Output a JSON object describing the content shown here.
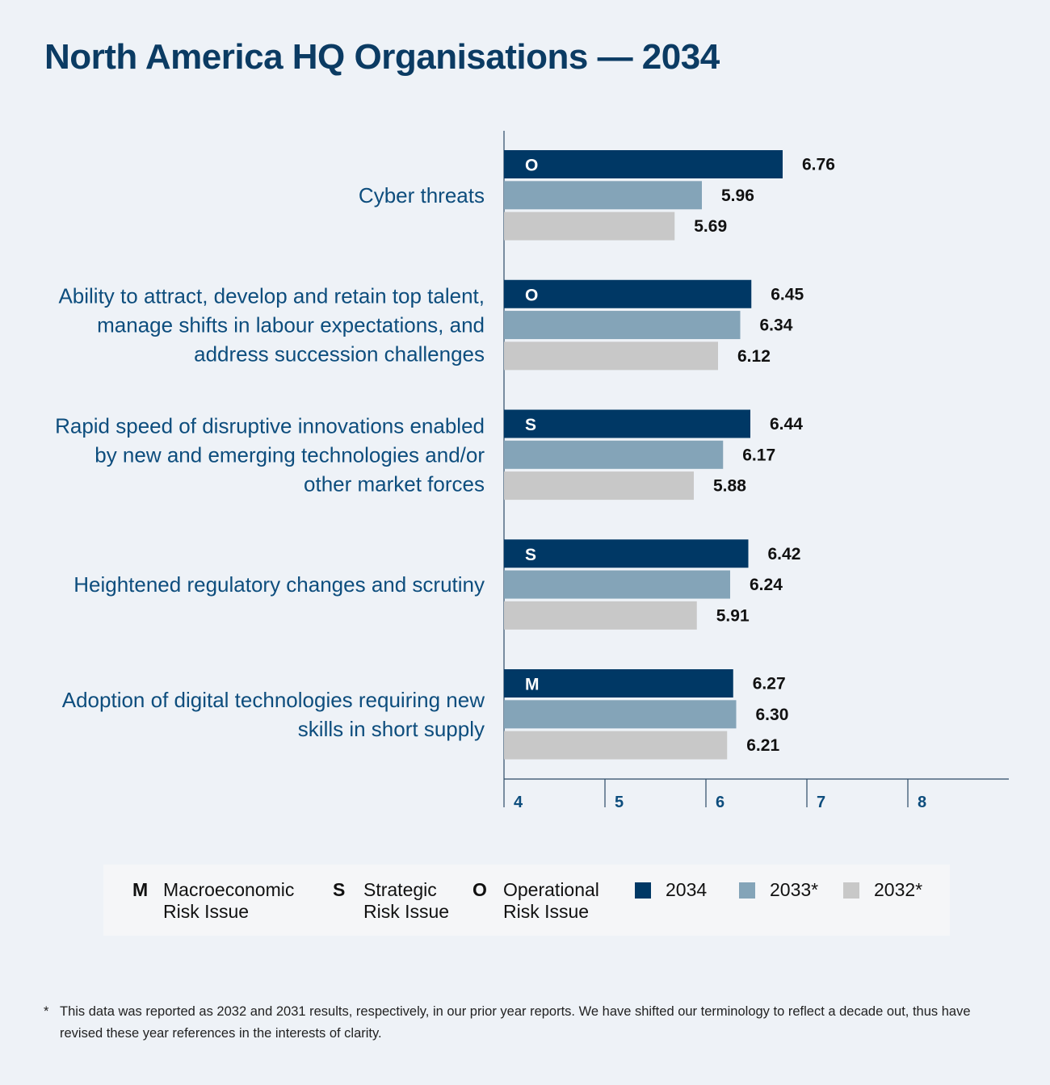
{
  "title": "North America HQ Organisations — 2034",
  "chart_data": {
    "type": "bar",
    "orientation": "horizontal",
    "categories": [
      [
        "Cyber threats"
      ],
      [
        "Ability to attract, develop and retain top talent,",
        "manage shifts in labour expectations, and",
        "address succession challenges"
      ],
      [
        "Rapid speed of disruptive innovations enabled",
        "by new and emerging technologies and/or",
        "other market forces"
      ],
      [
        "Heightened regulatory changes and scrutiny"
      ],
      [
        "Adoption of digital technologies requiring new",
        "skills in short supply"
      ]
    ],
    "risk_type": [
      "O",
      "O",
      "S",
      "S",
      "M"
    ],
    "series": [
      {
        "name": "2034",
        "color": "#003865",
        "values": [
          6.76,
          6.45,
          6.44,
          6.42,
          6.27
        ]
      },
      {
        "name": "2033*",
        "color": "#84a4b8",
        "values": [
          5.96,
          6.34,
          6.17,
          6.24,
          6.3
        ]
      },
      {
        "name": "2032*",
        "color": "#c8c8c8",
        "values": [
          5.69,
          6.12,
          5.88,
          5.91,
          6.21
        ]
      }
    ],
    "xlim": [
      4,
      9
    ],
    "xticks": [
      "4",
      "5",
      "6",
      "7",
      "8"
    ]
  },
  "legend": {
    "types": [
      {
        "letter": "M",
        "lines": [
          "Macroeconomic",
          "Risk Issue"
        ]
      },
      {
        "letter": "S",
        "lines": [
          "Strategic",
          "Risk Issue"
        ]
      },
      {
        "letter": "O",
        "lines": [
          "Operational",
          "Risk Issue"
        ]
      }
    ],
    "years": [
      {
        "label": "2034",
        "color": "#003865"
      },
      {
        "label": "2033*",
        "color": "#84a4b8"
      },
      {
        "label": "2032*",
        "color": "#c8c8c8"
      }
    ]
  },
  "footnote": {
    "mark": "*",
    "text": "This data was reported as 2032 and 2031 results, respectively, in our prior year reports. We have shifted our terminology to reflect a decade out, thus have revised these year references in the interests of clarity."
  }
}
